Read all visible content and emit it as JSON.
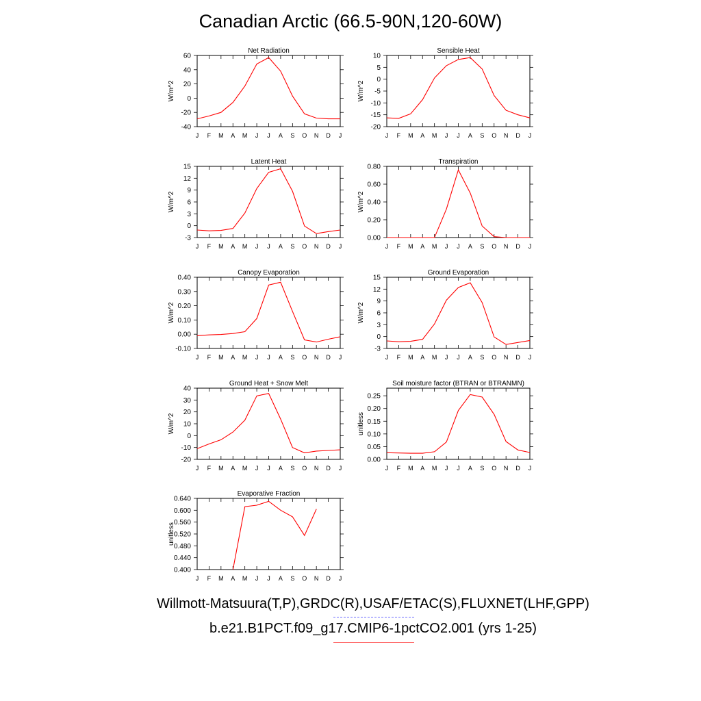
{
  "title": "Canadian Arctic (66.5-90N,120-60W)",
  "footer": {
    "obs_sources": "Willmott-Matsuura(T,P),GRDC(R),USAF/ETAC(S),FLUXNET(LHF,GPP)",
    "model_case": "b.e21.B1PCT.f09_g17.CMIP6-1pctCO2.001 (yrs 1-25)"
  },
  "colors": {
    "model_line": "#ff0000",
    "obs_legend": "#6a6aff",
    "model_legend": "#ff6a6a"
  },
  "chart_data": [
    {
      "type": "line",
      "title": "Net Radiation",
      "ylabel": "W/m^2",
      "categories": [
        "J",
        "F",
        "M",
        "A",
        "M",
        "J",
        "J",
        "A",
        "S",
        "O",
        "N",
        "D",
        "J"
      ],
      "ylim": [
        -40,
        60
      ],
      "yticks": [
        "60",
        "40",
        "20",
        "0",
        "-20",
        "-40"
      ],
      "series": [
        {
          "values": [
            -29,
            -25,
            -20,
            -6,
            17,
            48,
            57,
            38,
            3,
            -22,
            -28,
            -29,
            -29
          ]
        }
      ]
    },
    {
      "type": "line",
      "title": "Sensible Heat",
      "ylabel": "W/m^2",
      "categories": [
        "J",
        "F",
        "M",
        "A",
        "M",
        "J",
        "J",
        "A",
        "S",
        "O",
        "N",
        "D",
        "J"
      ],
      "ylim": [
        -20,
        10
      ],
      "yticks": [
        "10",
        "5",
        "0",
        "-5",
        "-10",
        "-15",
        "-20"
      ],
      "series": [
        {
          "values": [
            -16.3,
            -16.5,
            -14.6,
            -8.6,
            0.5,
            5.7,
            8.3,
            9.1,
            4.3,
            -6.9,
            -13.1,
            -15,
            -16.3
          ]
        }
      ]
    },
    {
      "type": "line",
      "title": "Latent Heat",
      "ylabel": "W/m^2",
      "categories": [
        "J",
        "F",
        "M",
        "A",
        "M",
        "J",
        "J",
        "A",
        "S",
        "O",
        "N",
        "D",
        "J"
      ],
      "ylim": [
        -3,
        15
      ],
      "yticks": [
        "15",
        "12",
        "9",
        "6",
        "3",
        "0",
        "-3"
      ],
      "series": [
        {
          "values": [
            -1.1,
            -1.3,
            -1.2,
            -0.7,
            3.2,
            9.4,
            13.5,
            14.4,
            8.7,
            -0.1,
            -2,
            -1.5,
            -1.1
          ]
        }
      ]
    },
    {
      "type": "line",
      "title": "Transpiration",
      "ylabel": "W/m^2",
      "categories": [
        "J",
        "F",
        "M",
        "A",
        "M",
        "J",
        "J",
        "A",
        "S",
        "O",
        "N",
        "D",
        "J"
      ],
      "ylim": [
        0,
        0.8
      ],
      "yticks": [
        "0.80",
        "0.60",
        "0.40",
        "0.20",
        "0.00"
      ],
      "series": [
        {
          "values": [
            0,
            0,
            0,
            0,
            0,
            0.32,
            0.76,
            0.5,
            0.13,
            0.01,
            0,
            0,
            0
          ]
        }
      ]
    },
    {
      "type": "line",
      "title": "Canopy Evaporation",
      "ylabel": "W/m^2",
      "categories": [
        "J",
        "F",
        "M",
        "A",
        "M",
        "J",
        "J",
        "A",
        "S",
        "O",
        "N",
        "D",
        "J"
      ],
      "ylim": [
        -0.1,
        0.4
      ],
      "yticks": [
        "0.40",
        "0.30",
        "0.20",
        "0.10",
        "0.00",
        "-0.10"
      ],
      "series": [
        {
          "values": [
            -0.01,
            -0.005,
            -0.002,
            0.005,
            0.018,
            0.11,
            0.345,
            0.365,
            0.16,
            -0.04,
            -0.055,
            -0.035,
            -0.018
          ]
        }
      ]
    },
    {
      "type": "line",
      "title": "Ground Evaporation",
      "ylabel": "W/m^2",
      "categories": [
        "J",
        "F",
        "M",
        "A",
        "M",
        "J",
        "J",
        "A",
        "S",
        "O",
        "N",
        "D",
        "J"
      ],
      "ylim": [
        -3,
        15
      ],
      "yticks": [
        "15",
        "12",
        "9",
        "6",
        "3",
        "0",
        "-3"
      ],
      "series": [
        {
          "values": [
            -1.1,
            -1.3,
            -1.2,
            -0.7,
            3.2,
            9.2,
            12.4,
            13.6,
            8.6,
            -0.1,
            -2,
            -1.5,
            -1
          ]
        }
      ]
    },
    {
      "type": "line",
      "title": "Ground Heat + Snow Melt",
      "ylabel": "W/m^2",
      "categories": [
        "J",
        "F",
        "M",
        "A",
        "M",
        "J",
        "J",
        "A",
        "S",
        "O",
        "N",
        "D",
        "J"
      ],
      "ylim": [
        -20,
        40
      ],
      "yticks": [
        "40",
        "30",
        "20",
        "10",
        "0",
        "-10",
        "-20"
      ],
      "series": [
        {
          "values": [
            -11,
            -7,
            -3.5,
            3,
            13,
            33.5,
            35.5,
            14,
            -10,
            -14.5,
            -13,
            -12.5,
            -12
          ]
        }
      ]
    },
    {
      "type": "line",
      "title": "Soil moisture factor (BTRAN or BTRANMN)",
      "ylabel": "unitless",
      "categories": [
        "J",
        "F",
        "M",
        "A",
        "M",
        "J",
        "J",
        "A",
        "S",
        "O",
        "N",
        "D",
        "J"
      ],
      "ylim": [
        0,
        0.28
      ],
      "yticks": [
        "0.25",
        "0.20",
        "0.15",
        "0.10",
        "0.05",
        "0.00"
      ],
      "series": [
        {
          "values": [
            0.026,
            0.025,
            0.024,
            0.024,
            0.03,
            0.068,
            0.192,
            0.255,
            0.245,
            0.177,
            0.07,
            0.037,
            0.027
          ]
        }
      ]
    },
    {
      "type": "line",
      "title": "Evaporative Fraction",
      "ylabel": "unitless",
      "categories": [
        "J",
        "F",
        "M",
        "A",
        "M",
        "J",
        "J",
        "A",
        "S",
        "O",
        "N",
        "D",
        "J"
      ],
      "ylim": [
        0.4,
        0.64
      ],
      "yticks": [
        "0.640",
        "0.600",
        "0.560",
        "0.520",
        "0.480",
        "0.440",
        "0.400"
      ],
      "series": [
        {
          "values": [
            null,
            null,
            null,
            0.4,
            0.612,
            0.617,
            0.63,
            0.6,
            0.578,
            0.515,
            0.604,
            null,
            null
          ]
        }
      ]
    }
  ]
}
